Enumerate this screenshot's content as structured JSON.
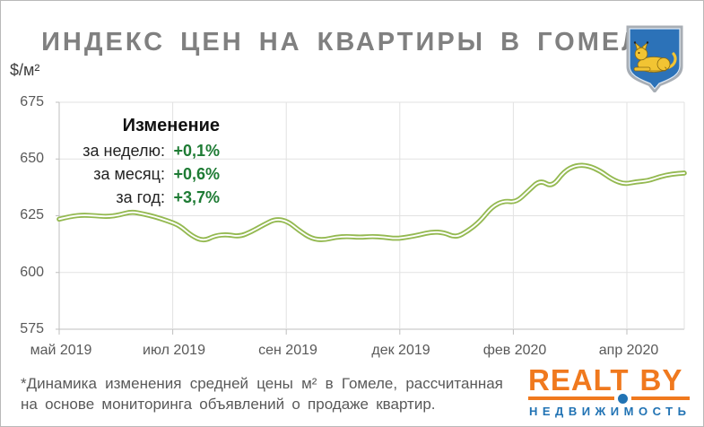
{
  "title": "ИНДЕКС ЦЕН НА КВАРТИРЫ В ГОМЕЛЕ",
  "y_axis_unit": "$/м²",
  "legend": {
    "title": "Изменение",
    "rows": [
      {
        "label": "за неделю:",
        "value": "+0,1%"
      },
      {
        "label": "за месяц:",
        "value": "+0,6%"
      },
      {
        "label": "за год:",
        "value": "+3,7%"
      }
    ]
  },
  "footnote": {
    "line1": "*Динамика изменения средней цены м² в Гомеле, рассчитанная",
    "line2": "на основе мониторинга объявлений о продаже квартир."
  },
  "logo": {
    "text_main": "REALT",
    "text_suffix": "BY",
    "subtitle": "НЕДВИЖИМОСТЬ"
  },
  "crest": {
    "name": "герб Гомеля (рысь)"
  },
  "colors": {
    "line_green": "#94b951",
    "line_inner": "#ffffff",
    "legend_green": "#1e7b34",
    "title_gray": "#808080",
    "axis_text": "#595959",
    "gridline": "#e2e2e2",
    "axis_line": "#bfbfbf",
    "logo_orange": "#f0791e",
    "logo_blue": "#2173b4",
    "crest_blue": "#2c72b8",
    "crest_gold": "#f2c433"
  },
  "chart_data": {
    "type": "line",
    "title": "ИНДЕКС ЦЕН НА КВАРТИРЫ В ГОМЕЛЕ",
    "ylabel": "$/м²",
    "ylim": [
      575,
      675
    ],
    "yticks": [
      675,
      650,
      625,
      600,
      575
    ],
    "xticklabels": [
      "май 2019",
      "июл 2019",
      "сен 2019",
      "дек 2019",
      "фев 2020",
      "апр 2020"
    ],
    "grid": true,
    "legend_position": "top-left",
    "series": [
      {
        "name": "индекс цен, $/м²",
        "values": [
          623.5,
          624.8,
          625.3,
          625.0,
          624.6,
          625.3,
          626.8,
          625.8,
          624.5,
          622.8,
          620.8,
          616.2,
          613.8,
          616.3,
          616.7,
          615.8,
          618.0,
          621.0,
          623.6,
          622.6,
          618.3,
          614.9,
          614.3,
          615.6,
          615.9,
          615.5,
          615.9,
          615.6,
          614.9,
          615.6,
          616.6,
          617.9,
          617.6,
          615.4,
          618.3,
          622.5,
          629.0,
          631.6,
          630.9,
          635.8,
          640.8,
          637.6,
          644.6,
          647.3,
          647.1,
          644.8,
          641.0,
          638.9,
          640.0,
          640.4,
          642.3,
          643.4,
          643.8
        ]
      }
    ]
  }
}
